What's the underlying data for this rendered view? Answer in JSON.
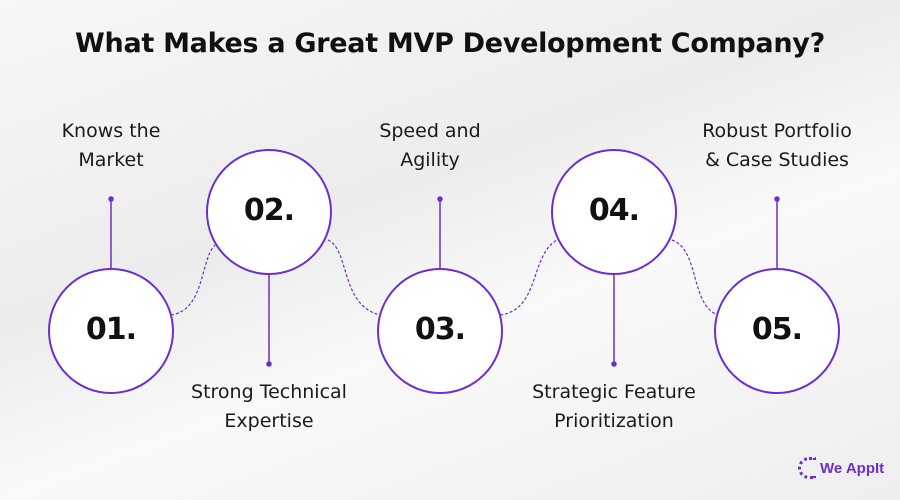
{
  "title": "What Makes a Great MVP Development Company?",
  "accent_color": "#6a2fd0",
  "steps": [
    {
      "number": "01.",
      "label_line1": "Knows the",
      "label_line2": "Market",
      "label_position": "top"
    },
    {
      "number": "02.",
      "label_line1": "Strong Technical",
      "label_line2": "Expertise",
      "label_position": "bottom"
    },
    {
      "number": "03.",
      "label_line1": "Speed and",
      "label_line2": "Agility",
      "label_position": "top"
    },
    {
      "number": "04.",
      "label_line1": "Strategic Feature",
      "label_line2": "Prioritization",
      "label_position": "bottom"
    },
    {
      "number": "05.",
      "label_line1": "Robust Portfolio",
      "label_line2": "& Case Studies",
      "label_position": "top"
    }
  ],
  "logo": {
    "text": "We AppIt"
  }
}
